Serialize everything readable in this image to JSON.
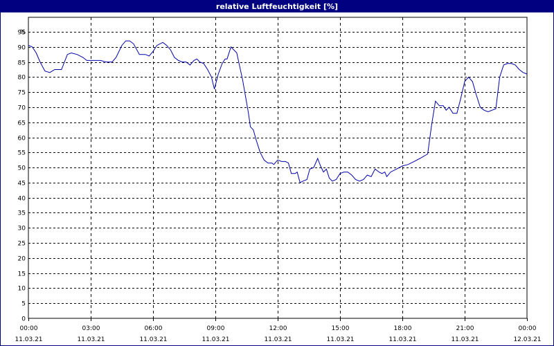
{
  "window": {
    "title": "relative Luftfeuchtigkeit [%]"
  },
  "colors": {
    "title_bar": "#000080",
    "line": "#0000aa",
    "grid": "#000000",
    "background": "#ffffff"
  },
  "chart_data": {
    "type": "line",
    "title": "relative Luftfeuchtigkeit [%]",
    "ylabel": "%",
    "ylim": [
      0,
      95
    ],
    "y_ticks": [
      "0",
      "5",
      "10",
      "15",
      "20",
      "25",
      "30",
      "35",
      "40",
      "45",
      "50",
      "55",
      "60",
      "65",
      "70",
      "75",
      "80",
      "85",
      "90",
      "95"
    ],
    "y_unit_label": "%",
    "x_range_hours": [
      0,
      24
    ],
    "x_ticks": [
      {
        "time": "00:00",
        "date": "11.03.21"
      },
      {
        "time": "03:00",
        "date": "11.03.21"
      },
      {
        "time": "06:00",
        "date": "11.03.21"
      },
      {
        "time": "09:00",
        "date": "11.03.21"
      },
      {
        "time": "12:00",
        "date": "11.03.21"
      },
      {
        "time": "15:00",
        "date": "11.03.21"
      },
      {
        "time": "18:00",
        "date": "11.03.21"
      },
      {
        "time": "21:00",
        "date": "11.03.21"
      },
      {
        "time": "00:00",
        "date": "12.03.21"
      }
    ],
    "grid": true,
    "series": [
      {
        "values": [
          [
            0.0,
            90.5
          ],
          [
            0.2,
            90.0
          ],
          [
            0.4,
            88.0
          ],
          [
            0.6,
            85.0
          ],
          [
            0.85,
            82.0
          ],
          [
            1.1,
            81.5
          ],
          [
            1.35,
            82.5
          ],
          [
            1.7,
            82.5
          ],
          [
            2.0,
            87.5
          ],
          [
            2.2,
            88.0
          ],
          [
            2.5,
            87.5
          ],
          [
            2.8,
            86.5
          ],
          [
            3.0,
            85.5
          ],
          [
            3.3,
            85.5
          ],
          [
            3.7,
            85.5
          ],
          [
            4.0,
            85.0
          ],
          [
            4.3,
            85.0
          ],
          [
            4.5,
            86.5
          ],
          [
            4.8,
            90.5
          ],
          [
            5.0,
            92.0
          ],
          [
            5.2,
            92.0
          ],
          [
            5.4,
            91.0
          ],
          [
            5.7,
            87.5
          ],
          [
            6.0,
            87.5
          ],
          [
            6.2,
            87.0
          ],
          [
            6.4,
            88.5
          ],
          [
            6.6,
            90.5
          ],
          [
            6.9,
            91.5
          ],
          [
            7.1,
            90.5
          ],
          [
            7.3,
            89.0
          ],
          [
            7.5,
            86.5
          ],
          [
            7.7,
            85.5
          ],
          [
            7.9,
            85.0
          ],
          [
            8.1,
            85.0
          ],
          [
            8.3,
            84.0
          ],
          [
            8.5,
            85.5
          ],
          [
            8.65,
            86.0
          ],
          [
            8.8,
            85.0
          ],
          [
            9.0,
            84.5
          ],
          [
            9.2,
            82.5
          ],
          [
            9.4,
            80.0
          ],
          [
            9.55,
            76.0
          ],
          [
            9.75,
            81.0
          ],
          [
            9.95,
            84.5
          ],
          [
            10.1,
            86.0
          ],
          [
            10.2,
            86.0
          ],
          [
            10.4,
            90.0
          ],
          [
            10.55,
            89.0
          ],
          [
            10.7,
            88.0
          ],
          [
            11.0,
            79.0
          ],
          [
            11.3,
            68.0
          ],
          [
            11.4,
            63.5
          ],
          [
            11.55,
            62.5
          ],
          [
            11.7,
            59.0
          ],
          [
            11.9,
            55.0
          ],
          [
            12.1,
            52.5
          ],
          [
            12.3,
            51.5
          ],
          [
            12.5,
            51.5
          ],
          [
            12.6,
            51.0
          ],
          [
            12.8,
            52.5
          ],
          [
            13.0,
            52.0
          ],
          [
            13.2,
            52.0
          ],
          [
            13.35,
            51.5
          ],
          [
            13.5,
            48.0
          ],
          [
            13.7,
            48.0
          ],
          [
            13.8,
            48.5
          ],
          [
            13.95,
            45.0
          ],
          [
            14.1,
            45.5
          ],
          [
            14.3,
            46.0
          ],
          [
            14.45,
            49.5
          ],
          [
            14.65,
            50.0
          ],
          [
            14.85,
            53.0
          ],
          [
            15.0,
            50.5
          ],
          [
            15.15,
            48.5
          ],
          [
            15.3,
            49.5
          ],
          [
            15.45,
            46.5
          ],
          [
            15.6,
            45.5
          ],
          [
            15.8,
            46.0
          ],
          [
            16.0,
            48.0
          ],
          [
            16.2,
            48.5
          ],
          [
            16.4,
            48.5
          ],
          [
            16.6,
            47.5
          ],
          [
            16.8,
            46.0
          ],
          [
            17.0,
            45.5
          ],
          [
            17.2,
            46.0
          ],
          [
            17.4,
            47.5
          ],
          [
            17.6,
            47.0
          ],
          [
            17.8,
            49.5
          ],
          [
            18.0,
            48.5
          ],
          [
            18.15,
            48.0
          ],
          [
            18.3,
            48.5
          ],
          [
            18.4,
            47.0
          ],
          [
            18.6,
            48.5
          ],
          [
            18.9,
            49.5
          ],
          [
            19.2,
            50.5
          ],
          [
            19.5,
            51.0
          ],
          [
            19.8,
            52.0
          ],
          [
            20.1,
            53.0
          ],
          [
            20.5,
            54.5
          ],
          [
            20.7,
            64.0
          ],
          [
            20.9,
            72.0
          ],
          [
            21.1,
            70.5
          ],
          [
            21.3,
            70.5
          ],
          [
            21.45,
            69.0
          ],
          [
            21.6,
            70.0
          ],
          [
            21.8,
            68.0
          ],
          [
            22.0,
            68.0
          ],
          [
            22.2,
            73.0
          ],
          [
            22.4,
            78.5
          ],
          [
            22.6,
            80.0
          ],
          [
            22.8,
            78.5
          ],
          [
            23.0,
            74.0
          ],
          [
            23.2,
            70.0
          ],
          [
            23.4,
            69.0
          ],
          [
            23.6,
            68.5
          ],
          [
            23.8,
            69.0
          ],
          [
            24.0,
            69.5
          ],
          [
            24.2,
            80.0
          ],
          [
            24.4,
            84.0
          ],
          [
            24.6,
            84.5
          ],
          [
            24.8,
            84.5
          ],
          [
            25.0,
            84.0
          ],
          [
            25.2,
            82.5
          ],
          [
            25.4,
            81.5
          ],
          [
            25.6,
            81.0
          ]
        ]
      }
    ]
  }
}
